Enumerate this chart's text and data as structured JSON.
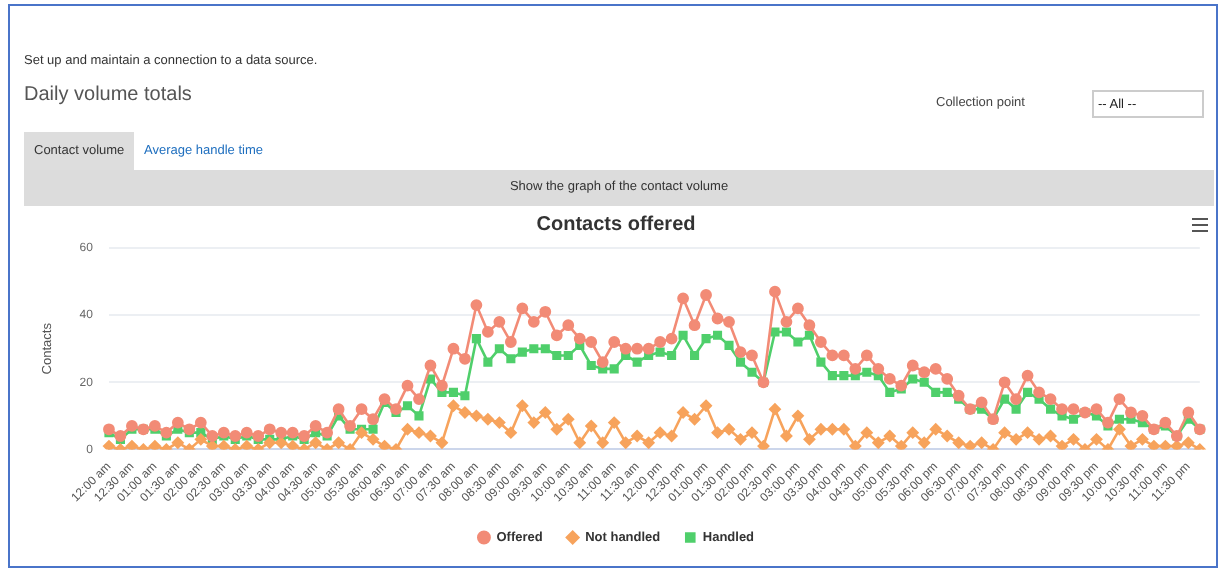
{
  "chart_data": {
    "type": "line",
    "title": "Contacts offered",
    "ylabel": "Contacts",
    "annotations": [
      "Set up and maintain a connection to a data source.",
      "Daily volume totals",
      "Collection point",
      "-- All --",
      "Contact volume",
      "Average handle time",
      "Show the graph of the contact volume"
    ],
    "categories": [
      "12:00 am",
      null,
      "12:30 am",
      null,
      "01:00 am",
      null,
      "01:30 am",
      null,
      "02:00 am",
      null,
      "02:30 am",
      null,
      "03:00 am",
      null,
      "03:30 am",
      null,
      "04:00 am",
      null,
      "04:30 am",
      null,
      "05:00 am",
      null,
      "05:30 am",
      null,
      "06:00 am",
      null,
      "06:30 am",
      null,
      "07:00 am",
      null,
      "07:30 am",
      null,
      "08:00 am",
      null,
      "08:30 am",
      null,
      "09:00 am",
      null,
      "09:30 am",
      null,
      "10:00 am",
      null,
      "10:30 am",
      null,
      "11:00 am",
      null,
      "11:30 am",
      null,
      "12:00 pm",
      null,
      "12:30 pm",
      null,
      "01:00 pm",
      null,
      "01:30 pm",
      null,
      "02:00 pm",
      null,
      "02:30 pm",
      null,
      "03:00 pm",
      null,
      "03:30 pm",
      null,
      "04:00 pm",
      null,
      "04:30 pm",
      null,
      "05:00 pm",
      null,
      "05:30 pm",
      null,
      "06:00 pm",
      null,
      "06:30 pm",
      null,
      "07:00 pm",
      null,
      "07:30 pm",
      null,
      "08:00 pm",
      null,
      "08:30 pm",
      null,
      "09:00 pm",
      null,
      "09:30 pm",
      null,
      "10:00 pm",
      null,
      "10:30 pm",
      null,
      "11:00 pm",
      null,
      "11:30 pm",
      null
    ],
    "series": [
      {
        "name": "Offered",
        "color": "#f28b76",
        "marker": "circle",
        "values": [
          6,
          4,
          7,
          6,
          7,
          5,
          8,
          6,
          8,
          4,
          5,
          4,
          5,
          4,
          6,
          5,
          5,
          4,
          7,
          5,
          12,
          7,
          12,
          9,
          15,
          12,
          19,
          15,
          25,
          19,
          30,
          27,
          43,
          35,
          38,
          32,
          42,
          38,
          41,
          34,
          37,
          33,
          32,
          26,
          32,
          30,
          30,
          30,
          32,
          33,
          45,
          37,
          46,
          39,
          38,
          29,
          28,
          20,
          47,
          38,
          42,
          37,
          32,
          28,
          28,
          24,
          28,
          24,
          21,
          19,
          25,
          23,
          24,
          21,
          16,
          12,
          14,
          9,
          20,
          15,
          22,
          17,
          15,
          12,
          12,
          11,
          12,
          8,
          15,
          11,
          10,
          6,
          8,
          4,
          11,
          6
        ]
      },
      {
        "name": "Not handled",
        "color": "#f7a35c",
        "marker": "diamond",
        "values": [
          1,
          0,
          1,
          0,
          1,
          0,
          2,
          0,
          3,
          1,
          1,
          0,
          1,
          0,
          2,
          2,
          1,
          0,
          2,
          0,
          2,
          0,
          5,
          3,
          1,
          0,
          6,
          5,
          4,
          2,
          13,
          11,
          10,
          9,
          8,
          5,
          13,
          8,
          11,
          6,
          9,
          2,
          7,
          2,
          8,
          2,
          4,
          2,
          5,
          4,
          11,
          9,
          13,
          5,
          6,
          3,
          5,
          1,
          12,
          4,
          10,
          3,
          6,
          6,
          6,
          1,
          5,
          2,
          4,
          1,
          5,
          2,
          6,
          4,
          2,
          1,
          2,
          0,
          5,
          3,
          5,
          3,
          4,
          1,
          3,
          0,
          3,
          0,
          6,
          1,
          3,
          1,
          1,
          1,
          2,
          0
        ]
      },
      {
        "name": "Handled",
        "color": "#4fcf6b",
        "marker": "square",
        "values": [
          5,
          3,
          6,
          6,
          6,
          4,
          6,
          5,
          5,
          3,
          4,
          3,
          4,
          3,
          3,
          3,
          4,
          3,
          5,
          4,
          10,
          6,
          6,
          6,
          14,
          11,
          13,
          10,
          21,
          17,
          17,
          16,
          33,
          26,
          30,
          27,
          29,
          30,
          30,
          28,
          28,
          31,
          25,
          24,
          24,
          28,
          26,
          28,
          29,
          28,
          34,
          28,
          33,
          34,
          31,
          26,
          23,
          20,
          35,
          35,
          32,
          34,
          26,
          22,
          22,
          22,
          23,
          22,
          17,
          18,
          21,
          20,
          17,
          17,
          15,
          12,
          12,
          9,
          15,
          12,
          17,
          15,
          12,
          10,
          9,
          11,
          10,
          7,
          9,
          9,
          8,
          6,
          7,
          4,
          9,
          6
        ]
      }
    ],
    "ylim": [
      0,
      60
    ],
    "yticks": [
      0,
      20,
      40,
      60
    ],
    "grid": "y",
    "legend": "bottom",
    "line_style": "solid"
  }
}
